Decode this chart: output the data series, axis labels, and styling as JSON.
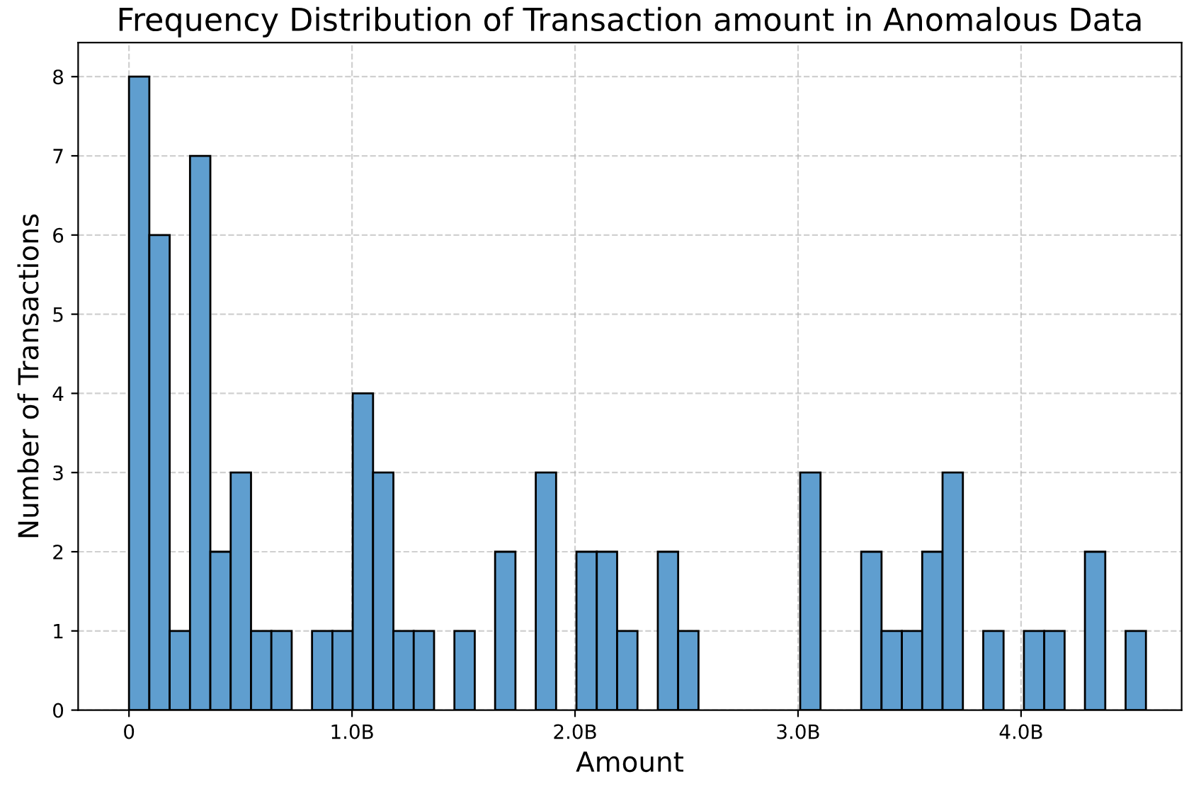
{
  "chart_data": {
    "type": "histogram",
    "title": "Frequency Distribution of Transaction amount in Anomalous Data",
    "xlabel": "Amount",
    "ylabel": "Number of Transactions",
    "bins": [
      0,
      91200000,
      182400000,
      273600000,
      364800000,
      456000000,
      547200000,
      638400000,
      729600000,
      820800000,
      912000000,
      1003200000,
      1094400000,
      1185600000,
      1276800000,
      1368000000,
      1459200000,
      1550400000,
      1641600000,
      1732800000,
      1824000000,
      1915200000,
      2006400000,
      2097600000,
      2188800000,
      2280000000,
      2371200000,
      2462400000,
      2553600000,
      2644800000,
      2736000000,
      2827200000,
      2918400000,
      3009600000,
      3100800000,
      3192000000,
      3283200000,
      3374400000,
      3465600000,
      3556800000,
      3648000000,
      3739200000,
      3830400000,
      3921600000,
      4012800000,
      4104000000,
      4195200000,
      4286400000,
      4377600000,
      4468800000,
      4560000000
    ],
    "values": [
      8,
      6,
      1,
      7,
      2,
      3,
      1,
      1,
      0,
      1,
      1,
      4,
      3,
      1,
      1,
      0,
      1,
      0,
      2,
      0,
      3,
      0,
      2,
      2,
      1,
      0,
      2,
      1,
      0,
      0,
      0,
      0,
      0,
      3,
      0,
      0,
      2,
      1,
      1,
      2,
      3,
      0,
      1,
      0,
      1,
      1,
      0,
      2,
      0,
      1
    ],
    "color": "#5f9ecf",
    "xlim": [
      -228000000,
      4720000000
    ],
    "xticks": [
      0,
      {
        "value": 1000000000,
        "label": "1.0B"
      },
      {
        "value": 2000000000,
        "label": "2.0B"
      },
      {
        "value": 3000000000,
        "label": "3.0B"
      },
      {
        "value": 4000000000,
        "label": "4.0B"
      }
    ],
    "ylim": [
      0,
      8.43
    ],
    "yticks": [
      0,
      1,
      2,
      3,
      4,
      5,
      6,
      7,
      8
    ],
    "grid": true
  }
}
